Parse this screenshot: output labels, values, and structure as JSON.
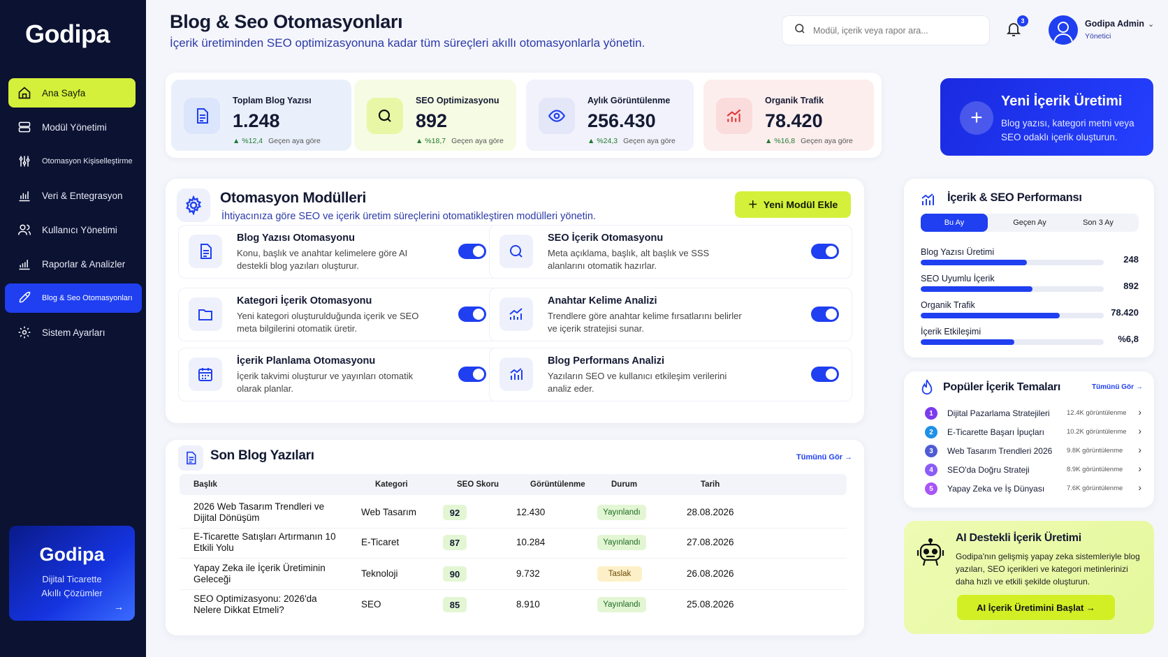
{
  "brand": {
    "logo": "Godipa"
  },
  "sidebar": {
    "items": [
      {
        "label": "Ana Sayfa",
        "icon": "home-icon"
      },
      {
        "label": "Modül Yönetimi",
        "icon": "modules-icon"
      },
      {
        "label": "Otomasyon Kişiselleştirme",
        "icon": "sliders-icon"
      },
      {
        "label": "Veri & Entegrasyon",
        "icon": "bar-chart-icon"
      },
      {
        "label": "Kullanıcı Yönetimi",
        "icon": "users-icon"
      },
      {
        "label": "Raporlar & Analizler",
        "icon": "report-chart-icon"
      },
      {
        "label": "Blog & Seo Otomasyonları",
        "icon": "rocket-icon"
      },
      {
        "label": "Sistem Ayarları",
        "icon": "gear-icon"
      }
    ],
    "promo": {
      "title": "Godipa",
      "line1": "Dijital Ticarette",
      "line2": "Akıllı Çözümler"
    }
  },
  "header": {
    "title": "Blog & Seo Otomasyonları",
    "subtitle": "İçerik üretiminden SEO optimizasyonuna kadar tüm süreçleri akıllı otomasyonlarla yönetin.",
    "search_placeholder": "Modül, içerik veya rapor ara...",
    "notifications": "3",
    "user_name": "Godipa Admin",
    "user_role": "Yönetici"
  },
  "stats": [
    {
      "label": "Toplam Blog Yazısı",
      "value": "1.248",
      "change": "▲ %12,4",
      "compare": "Geçen aya göre",
      "icon": "document-icon",
      "bg": "#eaf0fb"
    },
    {
      "label": "SEO Optimizasyonu",
      "value": "892",
      "change": "▲ %18,7",
      "compare": "Geçen aya göre",
      "icon": "search-icon",
      "bg": "#f6fbe3"
    },
    {
      "label": "Aylık Görüntülenme",
      "value": "256.430",
      "change": "▲ %24,3",
      "compare": "Geçen aya göre",
      "icon": "eye-icon",
      "bg": "#f1f2fb"
    },
    {
      "label": "Organik Trafik",
      "value": "78.420",
      "change": "▲ %16,8",
      "compare": "Geçen aya göre",
      "icon": "growth-chart-icon",
      "bg": "#fdeeee"
    }
  ],
  "cta": {
    "title": "Yeni İçerik Üretimi",
    "desc": "Blog yazısı, kategori metni veya SEO odaklı içerik oluşturun."
  },
  "modules": {
    "title": "Otomasyon Modülleri",
    "subtitle": "İhtiyacınıza göre SEO ve içerik üretim süreçlerini otomatikleştiren modülleri yönetin.",
    "add_button": "Yeni Modül Ekle",
    "items": [
      {
        "title": "Blog Yazısı Otomasyonu",
        "desc": "Konu, başlık ve anahtar kelimelere göre AI destekli blog yazıları oluşturur.",
        "icon": "document-icon",
        "enabled": true
      },
      {
        "title": "SEO İçerik Otomasyonu",
        "desc": "Meta açıklama, başlık, alt başlık ve SSS alanlarını otomatik hazırlar.",
        "icon": "search-icon",
        "enabled": true
      },
      {
        "title": "Kategori İçerik Otomasyonu",
        "desc": "Yeni kategori oluşturulduğunda içerik ve SEO meta bilgilerini otomatik üretir.",
        "icon": "folder-icon",
        "enabled": true
      },
      {
        "title": "Anahtar Kelime Analizi",
        "desc": "Trendlere göre anahtar kelime fırsatlarını belirler ve içerik stratejisi sunar.",
        "icon": "trend-chart-icon",
        "enabled": true
      },
      {
        "title": "İçerik Planlama Otomasyonu",
        "desc": "İçerik takvimi oluşturur ve yayınları otomatik olarak planlar.",
        "icon": "calendar-icon",
        "enabled": true
      },
      {
        "title": "Blog Performans Analizi",
        "desc": "Yazıların SEO ve kullanıcı etkileşim verilerini analiz eder.",
        "icon": "bar-chart-icon",
        "enabled": true
      }
    ]
  },
  "blogs": {
    "title": "Son Blog Yazıları",
    "see_all": "Tümünü Gör →",
    "columns": [
      "Başlık",
      "Kategori",
      "SEO Skoru",
      "Görüntülenme",
      "Durum",
      "Tarih"
    ],
    "rows": [
      {
        "title": "2026 Web Tasarım Trendleri ve Dijital Dönüşüm",
        "category": "Web Tasarım",
        "score": "92",
        "views": "12.430",
        "status": "Yayınlandı",
        "date": "28.08.2026"
      },
      {
        "title": "E-Ticarette Satışları Artırmanın 10 Etkili Yolu",
        "category": "E-Ticaret",
        "score": "87",
        "views": "10.284",
        "status": "Yayınlandı",
        "date": "27.08.2026"
      },
      {
        "title": "Yapay Zeka ile İçerik Üretiminin Geleceği",
        "category": "Teknoloji",
        "score": "90",
        "views": "9.732",
        "status": "Taslak",
        "date": "26.08.2026"
      },
      {
        "title": "SEO Optimizasyonu: 2026'da Nelere Dikkat Etmeli?",
        "category": "SEO",
        "score": "85",
        "views": "8.910",
        "status": "Yayınlandı",
        "date": "25.08.2026"
      }
    ]
  },
  "performance": {
    "title": "İçerik & SEO Performansı",
    "tabs": [
      "Bu Ay",
      "Geçen Ay",
      "Son 3 Ay"
    ],
    "active_tab": "Bu Ay",
    "metrics": [
      {
        "label": "Blog Yazısı Üretimi",
        "value": "248",
        "level": 0.58
      },
      {
        "label": "SEO Uyumlu İçerik",
        "value": "892",
        "level": 0.61
      },
      {
        "label": "Organik Trafik",
        "value": "78.420",
        "level": 0.76
      },
      {
        "label": "İçerik Etkileşimi",
        "value": "%6,8",
        "level": 0.51
      }
    ]
  },
  "popular": {
    "title": "Popüler İçerik Temaları",
    "see_all": "Tümünü Gör →",
    "items": [
      {
        "n": "1",
        "title": "Dijital Pazarlama Stratejileri",
        "views": "12.4K görüntülenme",
        "color": "#7c3aed"
      },
      {
        "n": "2",
        "title": "E-Ticarette Başarı İpuçları",
        "views": "10.2K görüntülenme",
        "color": "#1e90e8"
      },
      {
        "n": "3",
        "title": "Web Tasarım Trendleri 2026",
        "views": "9.8K görüntülenme",
        "color": "#4f5bd5"
      },
      {
        "n": "4",
        "title": "SEO'da Doğru Strateji",
        "views": "8.9K görüntülenme",
        "color": "#8b5cf6"
      },
      {
        "n": "5",
        "title": "Yapay Zeka ve İş Dünyası",
        "views": "7.6K görüntülenme",
        "color": "#a855f7"
      }
    ]
  },
  "ai": {
    "title": "AI Destekli İçerik Üretimi",
    "desc": "Godipa'nın gelişmiş yapay zeka sistemleriyle blog yazıları, SEO içerikleri ve kategori metinlerinizi daha hızlı ve etkili şekilde oluşturun.",
    "button": "AI İçerik Üretimini Başlat →"
  },
  "colors": {
    "accent": "#1f3ff0",
    "lime": "#d4f03a",
    "sidebar": "#0b1232"
  }
}
